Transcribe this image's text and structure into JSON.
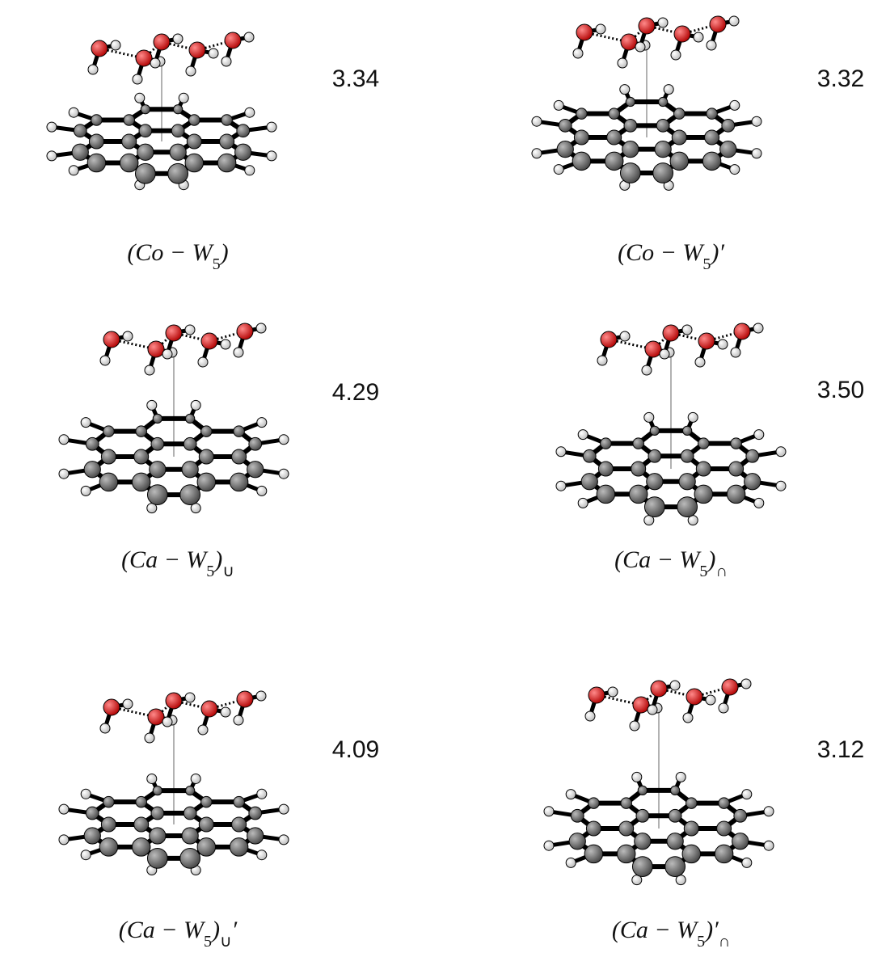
{
  "panels": [
    {
      "distance": "3.34",
      "label": [
        "(Co − W",
        "5",
        ")"
      ]
    },
    {
      "distance": "3.32",
      "label": [
        "(Co − W",
        "5",
        ")′"
      ]
    },
    {
      "distance": "4.29",
      "label": [
        "(Ca − W",
        "5",
        ")",
        "∪"
      ]
    },
    {
      "distance": "3.50",
      "label": [
        "(Ca − W",
        "5",
        ")",
        "∩"
      ]
    },
    {
      "distance": "4.09",
      "label": [
        "(Ca − W",
        "5",
        ")",
        "∪",
        "′"
      ]
    },
    {
      "distance": "3.12",
      "label": [
        "(Ca − W",
        "5",
        ")′",
        "∩"
      ]
    }
  ]
}
